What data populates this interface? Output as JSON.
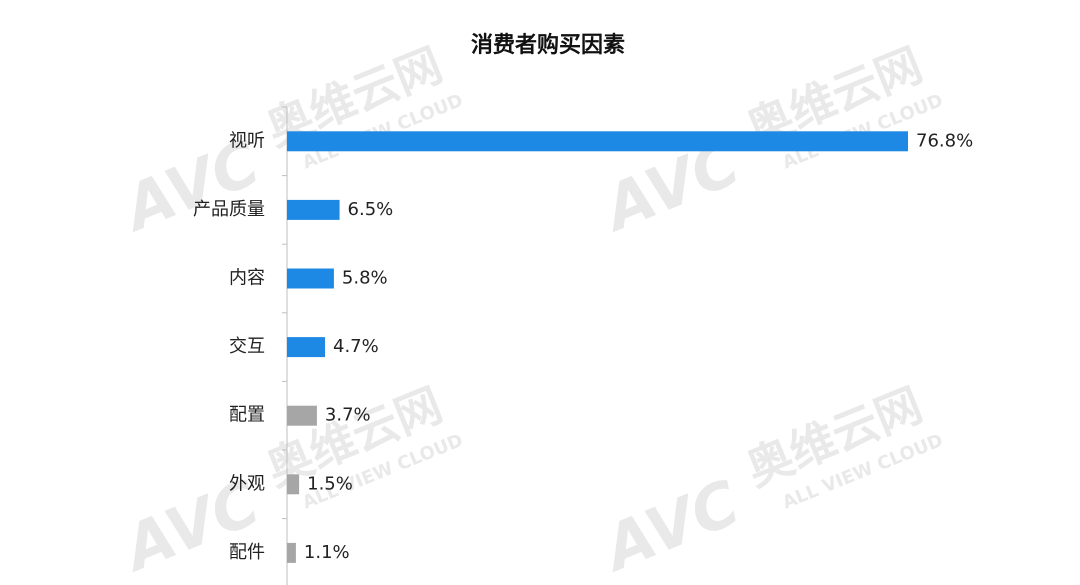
{
  "chart_data": {
    "type": "bar",
    "orientation": "horizontal",
    "title": "消费者购买因素",
    "categories": [
      "视听",
      "产品质量",
      "内容",
      "交互",
      "配置",
      "外观",
      "配件"
    ],
    "values": [
      76.8,
      6.5,
      5.8,
      4.7,
      3.7,
      1.5,
      1.1
    ],
    "value_labels": [
      "76.8%",
      "6.5%",
      "5.8%",
      "4.7%",
      "3.7%",
      "1.5%",
      "1.1%"
    ],
    "colors": [
      "#1e88e5",
      "#1e88e5",
      "#1e88e5",
      "#1e88e5",
      "#a6a6a6",
      "#a6a6a6",
      "#a6a6a6"
    ],
    "grid": false
  },
  "watermark": {
    "logo": "AVC",
    "name": "奥维云网",
    "tagline": "ALL VIEW CLOUD"
  }
}
